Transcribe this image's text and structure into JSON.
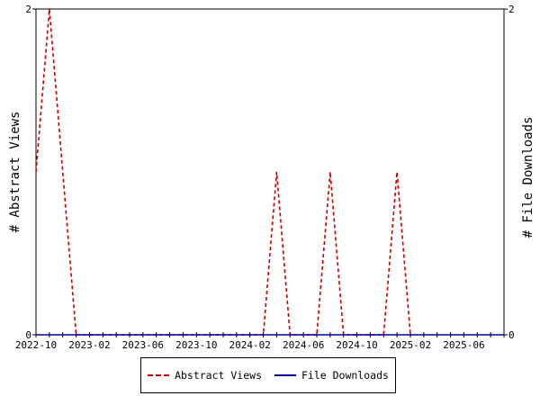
{
  "chart_data": {
    "type": "line",
    "x_tick_labels": [
      "2022-10",
      "2023-02",
      "2023-06",
      "2023-10",
      "2024-02",
      "2024-06",
      "2024-10",
      "2025-02",
      "2025-06"
    ],
    "x_range": [
      "2022-10",
      "2025-09"
    ],
    "y_left": {
      "label": "# Abstract Views",
      "range": [
        0,
        2
      ],
      "tick_labels": [
        "0",
        "2"
      ]
    },
    "y_right": {
      "label": "# File Downloads",
      "range": [
        0,
        2
      ],
      "tick_labels": [
        "0",
        "2"
      ]
    },
    "series": [
      {
        "name": "Abstract Views",
        "axis": "left",
        "color": "#cc0000",
        "style": "dashed",
        "x": [
          "2022-10",
          "2022-11",
          "2022-12",
          "2023-01",
          "2024-03",
          "2024-04",
          "2024-05",
          "2024-07",
          "2024-08",
          "2024-09",
          "2024-12",
          "2025-01",
          "2025-02"
        ],
        "values": [
          1,
          2,
          1,
          0,
          0,
          1,
          0,
          0,
          1,
          0,
          0,
          1,
          0
        ]
      },
      {
        "name": "File Downloads",
        "axis": "right",
        "color": "#000099",
        "style": "solid",
        "x": [
          "2022-10",
          "2025-09"
        ],
        "values": [
          0,
          0
        ]
      }
    ],
    "grid": false,
    "legend_position": "bottom"
  }
}
